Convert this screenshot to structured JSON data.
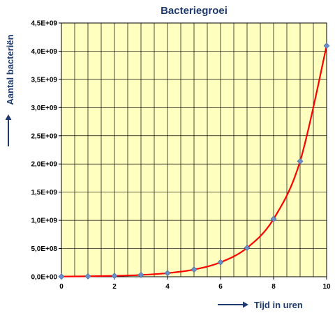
{
  "chart_data": {
    "type": "line",
    "title": "Bacteriegroei",
    "xlabel": "Tijd in uren",
    "ylabel": "Aantal bacteriën",
    "x": [
      0,
      1,
      2,
      3,
      4,
      5,
      6,
      7,
      8,
      9,
      10
    ],
    "series": [
      {
        "values": [
          4000000,
          8000000,
          16000000,
          32000000,
          64000000,
          128000000,
          256000000,
          512000000,
          1024000000,
          2048000000,
          4096000000
        ]
      }
    ],
    "xlim": [
      0,
      10
    ],
    "ylim": [
      0,
      4500000000
    ],
    "x_ticks": [
      "0",
      "2",
      "4",
      "6",
      "8",
      "10"
    ],
    "y_ticks": [
      "0,0E+00",
      "5,0E+08",
      "1,0E+09",
      "1,5E+09",
      "2,0E+09",
      "2,5E+09",
      "3,0E+09",
      "3,5E+09",
      "4,0E+09",
      "4,5E+09"
    ],
    "grid": true,
    "plot_background": "#FFFFC0",
    "line_color": "#FF0000",
    "marker_color": "#6A8FC8",
    "text_color": "#1F3A70"
  }
}
